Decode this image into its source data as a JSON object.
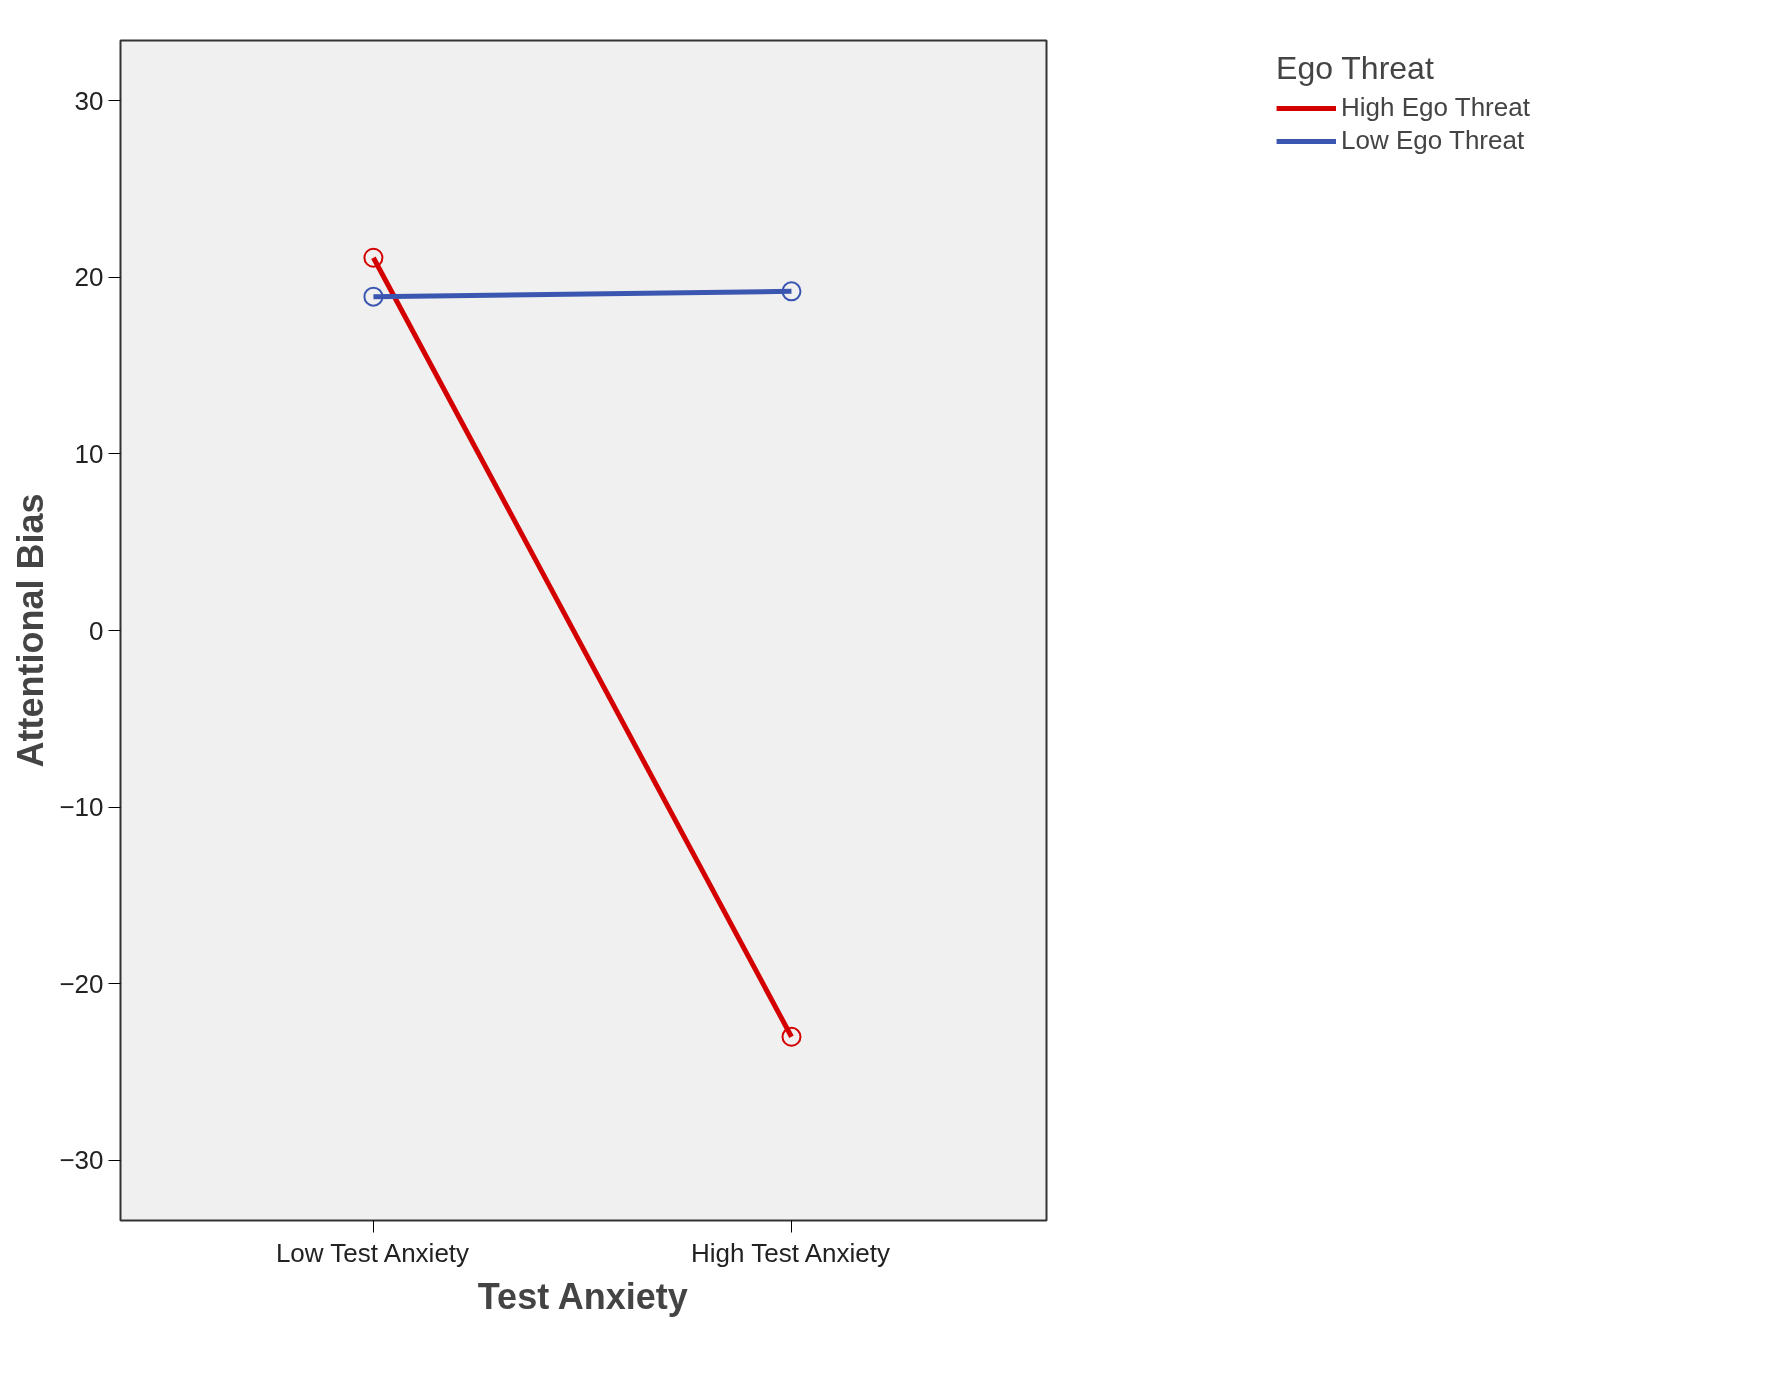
{
  "chart_data": {
    "type": "line",
    "xlabel": "Test Anxiety",
    "ylabel": "Attentional Bias",
    "legend_title": "Ego Threat",
    "categories": [
      "Low Test Anxiety",
      "High Test Anxiety"
    ],
    "series": [
      {
        "name": "High Ego Threat",
        "color": "#d40000",
        "values": [
          21.1,
          -23.0
        ]
      },
      {
        "name": "Low Ego Threat",
        "color": "#3a56b0",
        "values": [
          18.9,
          19.2
        ]
      }
    ],
    "ylim": [
      -33.4,
      33.4
    ],
    "yticks": [
      -30,
      -20,
      -10,
      0,
      10,
      20,
      30
    ],
    "grid": false,
    "legend": "top right",
    "marker": "circle",
    "line_style": "solid"
  }
}
